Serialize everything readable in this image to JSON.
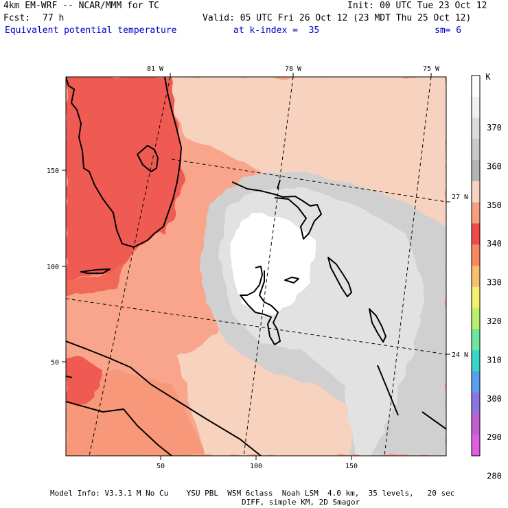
{
  "header": {
    "model": "4km EM-WRF -- NCAR/MMM for TC",
    "init": "Init: 00 UTC Tue 23 Oct 12",
    "fcst_label": "Fcst:",
    "fcst_value": "77 h",
    "valid": "Valid: 05 UTC Fri 26 Oct 12 (23 MDT Thu 25 Oct 12)",
    "field": "Equivalent potential temperature",
    "level": "at k-index =  35",
    "smooth": "sm= 6"
  },
  "map": {
    "lon_labels": [
      "81 W",
      "78 W",
      "75 W"
    ],
    "lat_labels": [
      "27 N",
      "24 N"
    ],
    "x_ticks": [
      "50",
      "100",
      "150"
    ],
    "y_ticks": [
      "150",
      "100",
      "50"
    ]
  },
  "colorbar": {
    "unit": "K",
    "labels": [
      "370",
      "360",
      "350",
      "340",
      "330",
      "320",
      "310",
      "300",
      "290",
      "280"
    ],
    "colors": [
      "#ffffff",
      "#f0f0f0",
      "#dcdcdc",
      "#c8c8c8",
      "#b4b4b4",
      "#f8d4c0",
      "#f4a080",
      "#ef4b4b",
      "#f98760",
      "#f9bf70",
      "#f5f06e",
      "#b9f06e",
      "#6ee6a0",
      "#39d5c5",
      "#5a9ef0",
      "#8b74e0",
      "#c060d0",
      "#e05fe0"
    ]
  },
  "footer": {
    "line1": "Model Info: V3.3.1 M No Cu    YSU PBL  WSM 6class  Noah LSM  4.0 km,  35 levels,   20 sec",
    "line2": "DIFF, simple KM, 2D Smagor"
  }
}
